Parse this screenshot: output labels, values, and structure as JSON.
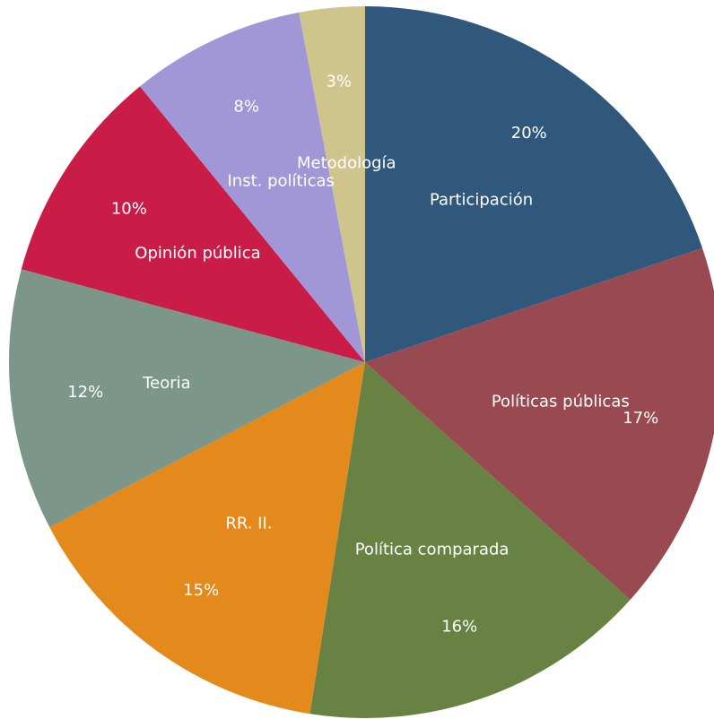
{
  "chart_data": {
    "type": "pie",
    "categories": [
      "Participación",
      "Políticas públicas",
      "Política comparada",
      "RR. II.",
      "Teoria",
      "Opinión pública",
      "Inst. políticas",
      "Metodología"
    ],
    "values": [
      20,
      17,
      16,
      15,
      12,
      10,
      8,
      3
    ],
    "value_labels": [
      "20%",
      "17%",
      "16%",
      "15%",
      "12%",
      "10%",
      "8%",
      "3%"
    ],
    "colors": [
      "#30587c",
      "#994a50",
      "#678242",
      "#e4891b",
      "#7c968a",
      "#c91d48",
      "#a197d6",
      "#cfc58c"
    ]
  }
}
